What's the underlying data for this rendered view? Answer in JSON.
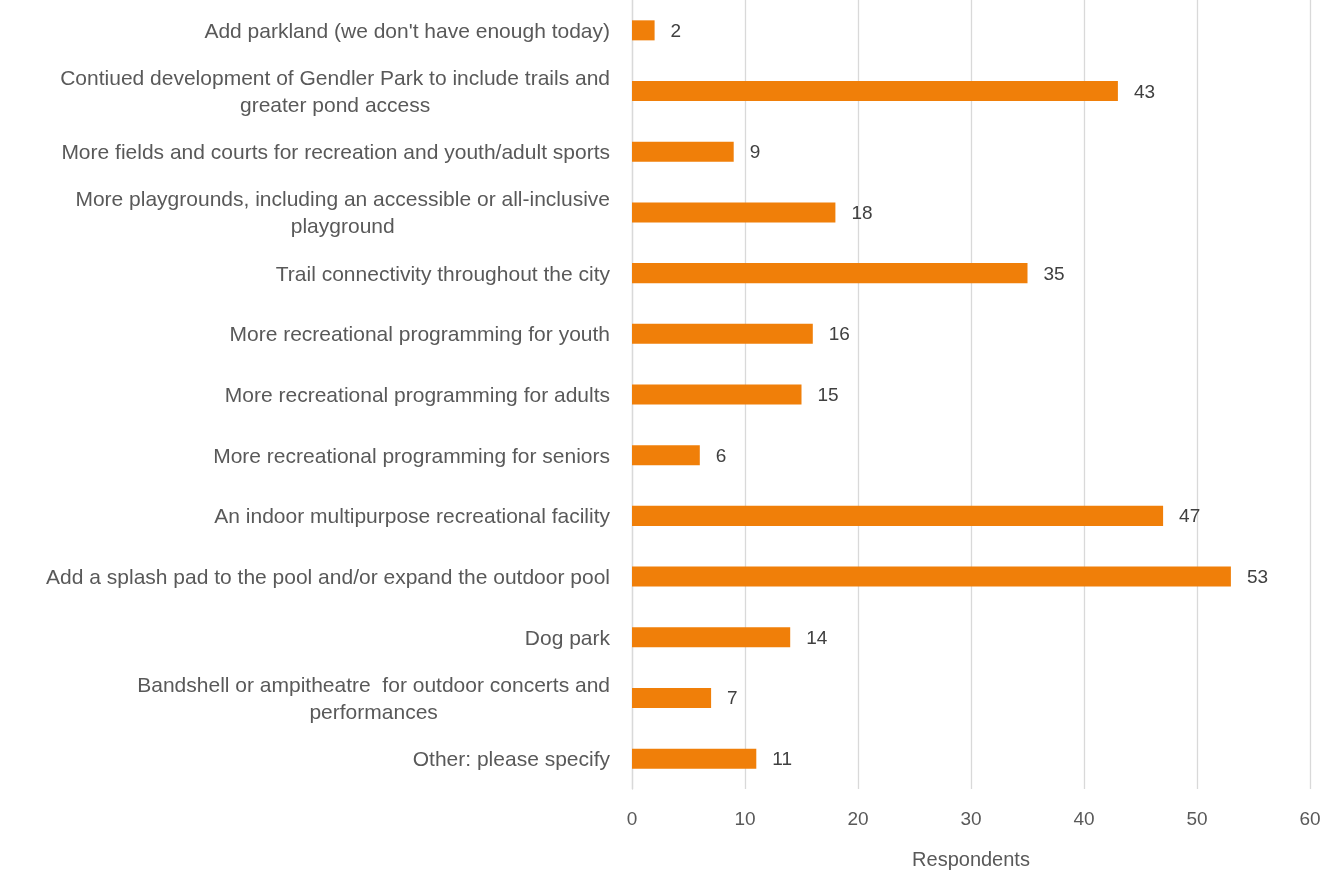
{
  "chart_data": {
    "type": "bar",
    "orientation": "horizontal",
    "categories": [
      "Add parkland (we don't have enough today)",
      "Contiued development of Gendler Park to include trails and greater pond access",
      "More fields and courts for recreation and youth/adult sports",
      "More playgrounds, including an accessible or all-inclusive playground",
      "Trail connectivity throughout the city",
      "More recreational programming for youth",
      "More recreational programming for adults",
      "More recreational programming for seniors",
      "An indoor multipurpose recreational facility",
      "Add a splash pad to the pool and/or expand the outdoor pool",
      "Dog park",
      "Bandshell or ampitheatre  for outdoor concerts and performances",
      "Other: please specify"
    ],
    "values": [
      2,
      43,
      9,
      18,
      35,
      16,
      15,
      6,
      47,
      53,
      14,
      7,
      11
    ],
    "color": "#f07f09",
    "xlabel": "Respondents",
    "xlim": [
      0,
      60
    ],
    "xticks": [
      0,
      10,
      20,
      30,
      40,
      50,
      60
    ],
    "grid": "x",
    "data_labels": true
  }
}
